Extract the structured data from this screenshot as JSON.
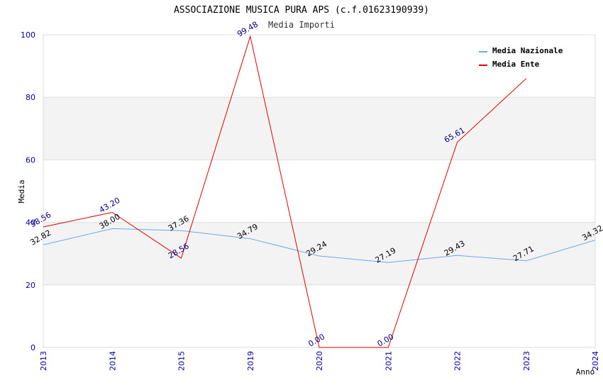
{
  "chart_data": {
    "type": "line",
    "title": "ASSOCIAZIONE MUSICA PURA APS (c.f.01623190939)",
    "subtitle": "Media Importi",
    "xlabel": "Anno",
    "ylabel": "Media",
    "ylim": [
      0,
      100
    ],
    "yticks": [
      0,
      20,
      40,
      60,
      80,
      100
    ],
    "categories": [
      "2013",
      "2014",
      "2015",
      "2019",
      "2020",
      "2021",
      "2022",
      "2023",
      "2024"
    ],
    "series": [
      {
        "name": "Media Nazionale",
        "color": "#66aaee",
        "values": [
          32.82,
          38.0,
          37.36,
          34.79,
          29.24,
          27.19,
          29.43,
          27.71,
          34.32
        ],
        "labels": [
          "32.82",
          "38.00",
          "37.36",
          "34.79",
          "29.24",
          "27.19",
          "29.43",
          "27.71",
          "34.32"
        ]
      },
      {
        "name": "Media Ente",
        "color": "#e00000",
        "values": [
          38.56,
          43.2,
          28.56,
          99.48,
          0.0,
          0.0,
          65.61,
          86.0,
          null
        ],
        "labels": [
          "38.56",
          "43.20",
          "28.56",
          "99.48",
          "0.00",
          "0.00",
          "65.61",
          "",
          ""
        ]
      }
    ],
    "legend": "top-right"
  }
}
